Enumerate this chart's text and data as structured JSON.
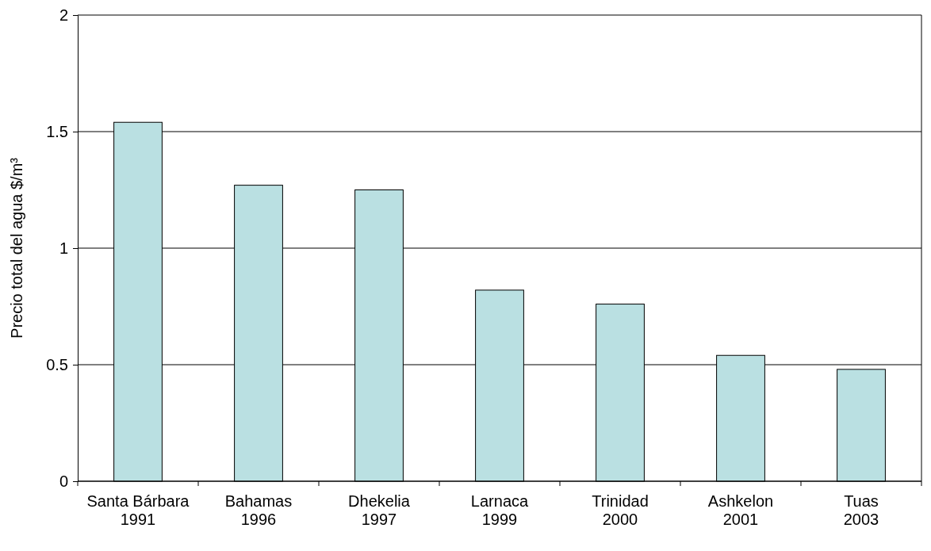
{
  "chart_data": {
    "type": "bar",
    "ylabel": "Precio total del agua $/m³",
    "categories": [
      "Santa Bárbara\n1991",
      "Bahamas\n1996",
      "Dhekelia\n1997",
      "Larnaca\n1999",
      "Trinidad\n2000",
      "Ashkelon\n2001",
      "Tuas\n2003"
    ],
    "values": [
      1.54,
      1.27,
      1.25,
      0.82,
      0.76,
      0.54,
      0.48
    ],
    "color": "#bae0e2",
    "ylim": [
      0,
      2
    ],
    "yticks": [
      0,
      0.5,
      1,
      1.5,
      2
    ],
    "grid": "y"
  }
}
